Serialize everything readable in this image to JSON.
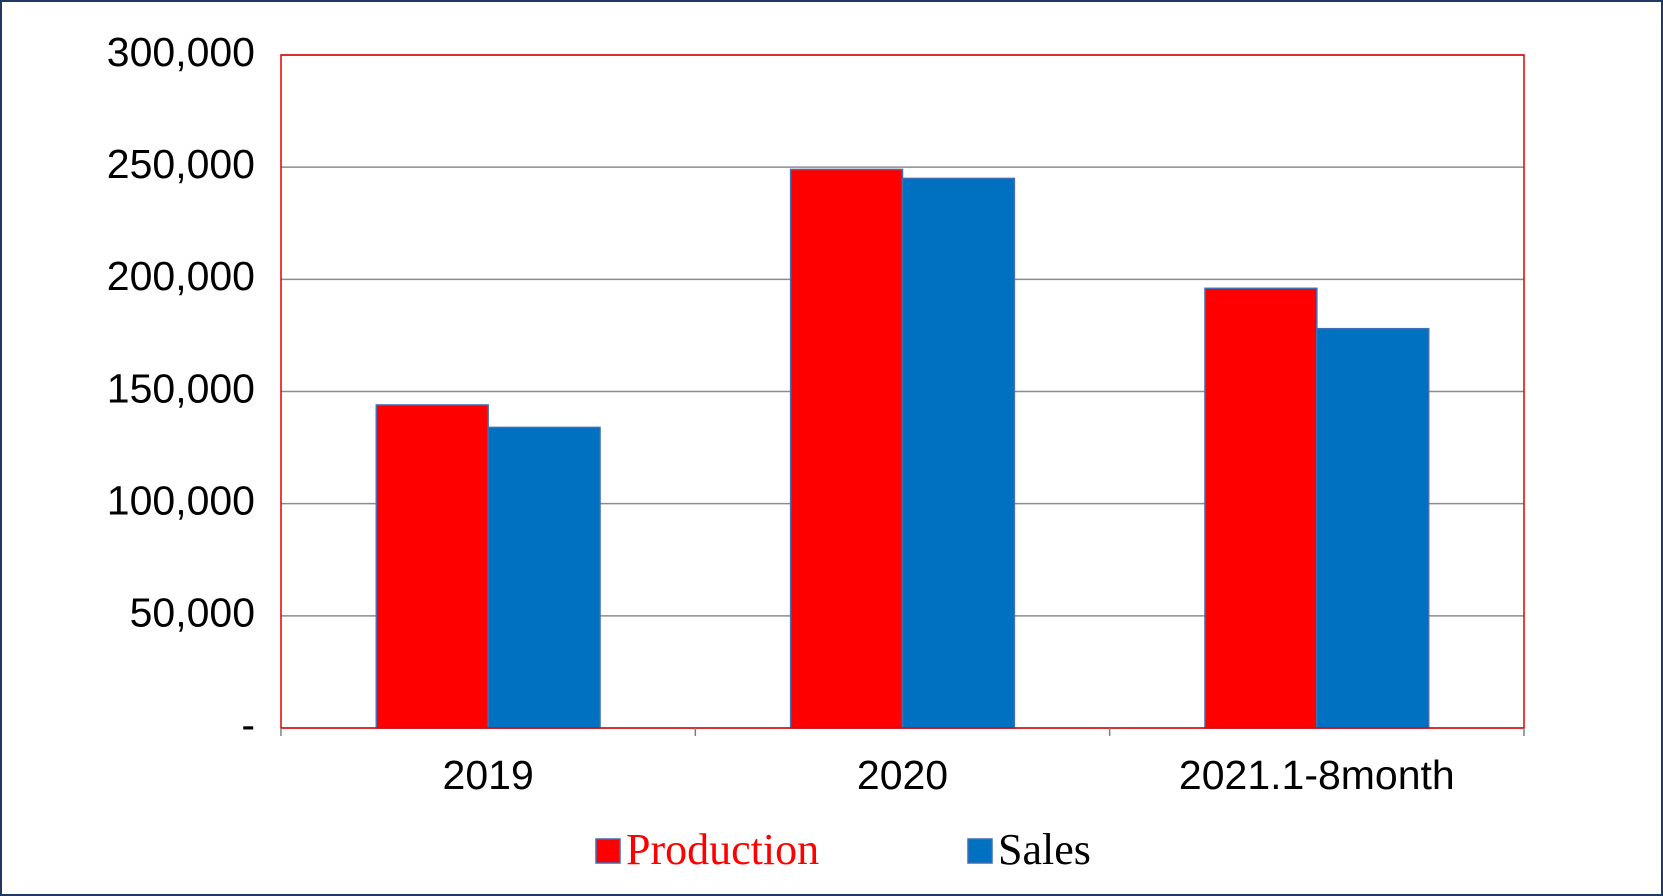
{
  "chart_data": {
    "type": "bar",
    "categories": [
      "2019",
      "2020",
      "2021.1-8month"
    ],
    "series": [
      {
        "name": "Production",
        "color": "#ff0000",
        "values": [
          144000,
          249000,
          196000
        ]
      },
      {
        "name": "Sales",
        "color": "#0070c0",
        "values": [
          134000,
          245000,
          178000
        ]
      }
    ],
    "ylim": [
      0,
      300000
    ],
    "yticks": [
      {
        "value": 0,
        "label": "-"
      },
      {
        "value": 50000,
        "label": "50,000"
      },
      {
        "value": 100000,
        "label": "100,000"
      },
      {
        "value": 150000,
        "label": "150,000"
      },
      {
        "value": 200000,
        "label": "200,000"
      },
      {
        "value": 250000,
        "label": "250,000"
      },
      {
        "value": 300000,
        "label": "300,000"
      }
    ],
    "grid": true,
    "legend": "bottom"
  }
}
